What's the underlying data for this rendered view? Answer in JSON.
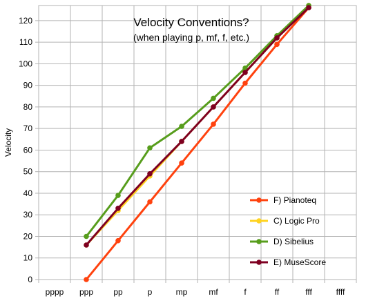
{
  "chart_data": {
    "type": "line",
    "title": "Velocity Conventions?",
    "subtitle": "(when playing p, mf, f, etc.)",
    "xlabel": "",
    "ylabel": "Velocity",
    "categories": [
      "pppp",
      "ppp",
      "pp",
      "p",
      "mp",
      "mf",
      "f",
      "ff",
      "fff",
      "ffff"
    ],
    "ylim": [
      0,
      127
    ],
    "yticks": [
      0,
      10,
      20,
      30,
      40,
      50,
      60,
      70,
      80,
      90,
      100,
      110,
      120
    ],
    "grid": true,
    "legend_position": "lower-right",
    "series": [
      {
        "name": "F) Pianoteq",
        "color": "#ff420e",
        "values": [
          null,
          0,
          18,
          36,
          54,
          72,
          91,
          109,
          126,
          null
        ]
      },
      {
        "name": "C) Logic Pro",
        "color": "#ffd320",
        "values": [
          null,
          16,
          32,
          48,
          64,
          80,
          96,
          112,
          127,
          null
        ]
      },
      {
        "name": "D) Sibelius",
        "color": "#579d1c",
        "values": [
          null,
          20,
          39,
          61,
          71,
          84,
          98,
          113,
          127,
          null
        ]
      },
      {
        "name": "E) MuseScore",
        "color": "#7e0021",
        "values": [
          null,
          16,
          33,
          49,
          64,
          80,
          96,
          112,
          126,
          null
        ]
      }
    ]
  }
}
